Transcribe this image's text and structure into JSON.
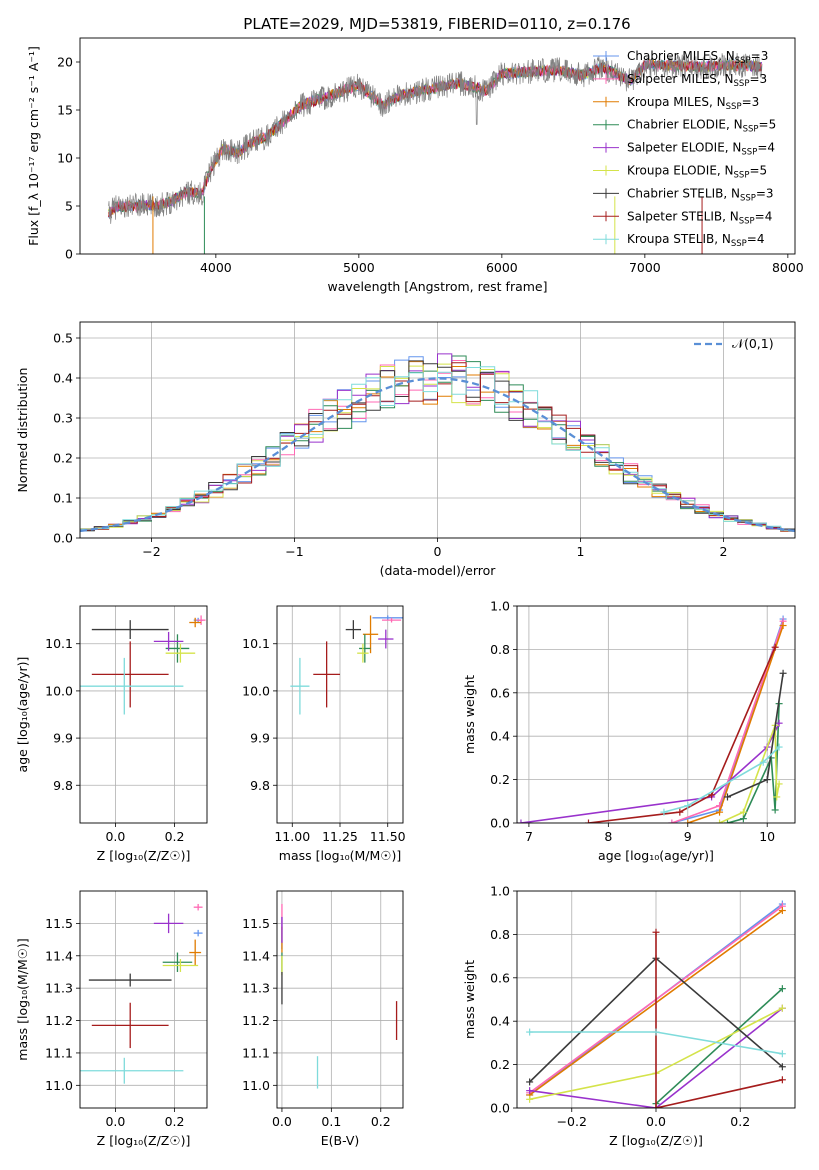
{
  "figure_title": "PLATE=2029, MJD=53819, FIBERID=0110, z=0.176",
  "colors": {
    "Chabrier MILES": "#6495ed",
    "Salpeter MILES": "#ff69b4",
    "Kroupa MILES": "#e07b00",
    "Chabrier ELODIE": "#2e8b57",
    "Salpeter ELODIE": "#9932cc",
    "Kroupa ELODIE": "#d4e34a",
    "Chabrier STELIB": "#3a3a3a",
    "Salpeter STELIB": "#a51c1c",
    "Kroupa STELIB": "#7fdbdb",
    "data": "#808080",
    "normal_curve": "#5a8fd6"
  },
  "chart_data": [
    {
      "id": "spectrum",
      "type": "line",
      "title": "PLATE=2029, MJD=53819, FIBERID=0110, z=0.176",
      "xlabel": "wavelength [Angstrom, rest frame]",
      "ylabel": "Flux [f_λ 10⁻¹⁷ erg cm⁻² s⁻¹ A⁻¹]",
      "xlim": [
        3050,
        8050
      ],
      "ylim": [
        0,
        22.5
      ],
      "xticks": [
        "4000",
        "5000",
        "6000",
        "7000",
        "8000"
      ],
      "yticks": [
        "0",
        "5",
        "10",
        "15",
        "20"
      ],
      "legend": [
        "Chabrier MILES, N_SSP=3",
        "Salpeter MILES, N_SSP=3",
        "Kroupa MILES, N_SSP=3",
        "Chabrier ELODIE, N_SSP=5",
        "Salpeter ELODIE, N_SSP=4",
        "Kroupa ELODIE, N_SSP=5",
        "Chabrier STELIB, N_SSP=3",
        "Salpeter STELIB, N_SSP=4",
        "Kroupa STELIB, N_SSP=4"
      ],
      "legend_position": "right",
      "continuum": [
        [
          3250,
          4.2
        ],
        [
          3300,
          4.9
        ],
        [
          3400,
          5.0
        ],
        [
          3500,
          5.1
        ],
        [
          3600,
          5.0
        ],
        [
          3700,
          5.6
        ],
        [
          3800,
          6.5
        ],
        [
          3900,
          6.2
        ],
        [
          3970,
          9.0
        ],
        [
          4050,
          11.0
        ],
        [
          4150,
          10.5
        ],
        [
          4250,
          11.6
        ],
        [
          4350,
          12.2
        ],
        [
          4450,
          13.5
        ],
        [
          4600,
          15.5
        ],
        [
          4800,
          16.5
        ],
        [
          5000,
          17.6
        ],
        [
          5170,
          15.5
        ],
        [
          5300,
          16.6
        ],
        [
          5500,
          17.2
        ],
        [
          5700,
          17.8
        ],
        [
          5890,
          17.0
        ],
        [
          6000,
          18.8
        ],
        [
          6200,
          19.0
        ],
        [
          6400,
          19.2
        ],
        [
          6563,
          18.6
        ],
        [
          6700,
          19.5
        ],
        [
          6900,
          18.0
        ],
        [
          7000,
          19.7
        ],
        [
          7200,
          19.6
        ],
        [
          7400,
          19.5
        ],
        [
          7600,
          19.7
        ],
        [
          7820,
          19.5
        ]
      ]
    },
    {
      "id": "residuals",
      "type": "step",
      "xlabel": "(data-model)/error",
      "ylabel": "Normed distribution",
      "xlim": [
        -2.5,
        2.5
      ],
      "ylim": [
        0,
        0.54
      ],
      "xticks": [
        "−2",
        "−1",
        "0",
        "1",
        "2"
      ],
      "yticks": [
        "0.0",
        "0.1",
        "0.2",
        "0.3",
        "0.4",
        "0.5"
      ],
      "grid": true,
      "legend": [
        "𝒩(0,1)"
      ],
      "legend_position": "top-right",
      "normal_curve": {
        "mean": 0,
        "sigma": 1
      },
      "bin_width": 0.1
    },
    {
      "id": "age_vs_Z",
      "type": "scatter",
      "xlabel": "Z [log₁₀(Z/Z☉)]",
      "ylabel": "age  [log₁₀(age/yr)]",
      "xlim": [
        -0.12,
        0.31
      ],
      "ylim": [
        9.72,
        10.18
      ],
      "xticks": [
        "0.0",
        "0.2"
      ],
      "yticks": [
        "9.8",
        "9.9",
        "10.0",
        "10.1"
      ],
      "points": [
        {
          "model": "Chabrier MILES",
          "x": 0.28,
          "xerr": 0.015,
          "y": 10.15,
          "yerr": 0.005
        },
        {
          "model": "Salpeter MILES",
          "x": 0.29,
          "xerr": 0.015,
          "y": 10.15,
          "yerr": 0.01
        },
        {
          "model": "Kroupa MILES",
          "x": 0.27,
          "xerr": 0.02,
          "y": 10.145,
          "yerr": 0.01
        },
        {
          "model": "Chabrier ELODIE",
          "x": 0.21,
          "xerr": 0.04,
          "y": 10.09,
          "yerr": 0.03
        },
        {
          "model": "Salpeter ELODIE",
          "x": 0.18,
          "xerr": 0.05,
          "y": 10.105,
          "yerr": 0.02
        },
        {
          "model": "Kroupa ELODIE",
          "x": 0.22,
          "xerr": 0.05,
          "y": 10.08,
          "yerr": 0.02
        },
        {
          "model": "Chabrier STELIB",
          "x": 0.05,
          "xerr": 0.13,
          "y": 10.13,
          "yerr": 0.02
        },
        {
          "model": "Salpeter STELIB",
          "x": 0.05,
          "xerr": 0.13,
          "y": 10.035,
          "yerr": 0.07
        },
        {
          "model": "Kroupa STELIB",
          "x": 0.03,
          "xerr": 0.2,
          "y": 10.01,
          "yerr": 0.06
        }
      ]
    },
    {
      "id": "age_vs_mass",
      "type": "scatter",
      "xlabel": "mass [log₁₀(M/M☉)]",
      "ylabel": "",
      "xlim": [
        10.92,
        11.58
      ],
      "ylim": [
        9.72,
        10.18
      ],
      "xticks": [
        "11.00",
        "11.25",
        "11.50"
      ],
      "yticks": [
        "9.8",
        "9.9",
        "10.0",
        "10.1"
      ],
      "points": [
        {
          "model": "Chabrier MILES",
          "x": 11.5,
          "xerr": 0.08,
          "y": 10.155,
          "yerr": 0.005
        },
        {
          "model": "Salpeter MILES",
          "x": 11.52,
          "xerr": 0.05,
          "y": 10.15,
          "yerr": 0.005
        },
        {
          "model": "Kroupa MILES",
          "x": 11.41,
          "xerr": 0.04,
          "y": 10.12,
          "yerr": 0.04
        },
        {
          "model": "Chabrier ELODIE",
          "x": 11.38,
          "xerr": 0.03,
          "y": 10.09,
          "yerr": 0.03
        },
        {
          "model": "Salpeter ELODIE",
          "x": 11.49,
          "xerr": 0.04,
          "y": 10.11,
          "yerr": 0.02
        },
        {
          "model": "Kroupa ELODIE",
          "x": 11.37,
          "xerr": 0.03,
          "y": 10.08,
          "yerr": 0.02
        },
        {
          "model": "Chabrier STELIB",
          "x": 11.32,
          "xerr": 0.04,
          "y": 10.13,
          "yerr": 0.02
        },
        {
          "model": "Salpeter STELIB",
          "x": 11.18,
          "xerr": 0.07,
          "y": 10.035,
          "yerr": 0.07
        },
        {
          "model": "Kroupa STELIB",
          "x": 11.04,
          "xerr": 0.05,
          "y": 10.01,
          "yerr": 0.06
        }
      ]
    },
    {
      "id": "mass_weight_vs_age",
      "type": "line",
      "xlabel": "age  [log₁₀(age/yr)]",
      "ylabel": "mass weight",
      "xlim": [
        6.85,
        10.35
      ],
      "ylim": [
        0,
        1.0
      ],
      "xticks": [
        "7",
        "8",
        "9",
        "10"
      ],
      "yticks": [
        "0.0",
        "0.2",
        "0.4",
        "0.6",
        "0.8",
        "1.0"
      ],
      "grid": true,
      "series": [
        {
          "name": "Chabrier MILES",
          "x": [
            8.8,
            9.4,
            10.2
          ],
          "y": [
            0.0,
            0.06,
            0.94
          ]
        },
        {
          "name": "Salpeter MILES",
          "x": [
            8.8,
            9.4,
            10.2
          ],
          "y": [
            0.0,
            0.08,
            0.93
          ]
        },
        {
          "name": "Kroupa MILES",
          "x": [
            9.0,
            9.4,
            10.2
          ],
          "y": [
            0.0,
            0.05,
            0.91
          ]
        },
        {
          "name": "Chabrier ELODIE",
          "x": [
            9.5,
            9.7,
            10.05,
            10.1,
            10.15
          ],
          "y": [
            0.0,
            0.02,
            0.3,
            0.06,
            0.55
          ]
        },
        {
          "name": "Salpeter ELODIE",
          "x": [
            6.9,
            9.3,
            10.0,
            10.15
          ],
          "y": [
            0.0,
            0.12,
            0.35,
            0.46
          ]
        },
        {
          "name": "Kroupa ELODIE",
          "x": [
            9.4,
            9.7,
            10.1,
            10.12,
            10.15
          ],
          "y": [
            0.0,
            0.05,
            0.45,
            0.12,
            0.18
          ]
        },
        {
          "name": "Chabrier STELIB",
          "x": [
            9.5,
            10.0,
            10.2
          ],
          "y": [
            0.12,
            0.2,
            0.69
          ]
        },
        {
          "name": "Salpeter STELIB",
          "x": [
            7.75,
            8.9,
            9.3,
            10.1
          ],
          "y": [
            0.0,
            0.05,
            0.13,
            0.81
          ]
        },
        {
          "name": "Kroupa STELIB",
          "x": [
            8.7,
            9.0,
            9.95,
            10.15
          ],
          "y": [
            0.05,
            0.08,
            0.28,
            0.35
          ]
        }
      ]
    },
    {
      "id": "mass_vs_Z",
      "type": "scatter",
      "xlabel": "Z [log₁₀(Z/Z☉)]",
      "ylabel": "mass [log₁₀(M/M☉)]",
      "xlim": [
        -0.12,
        0.31
      ],
      "ylim": [
        10.93,
        11.6
      ],
      "xticks": [
        "0.0",
        "0.2"
      ],
      "yticks": [
        "11.0",
        "11.1",
        "11.2",
        "11.3",
        "11.4",
        "11.5"
      ],
      "points": [
        {
          "model": "Chabrier MILES",
          "x": 0.28,
          "xerr": 0.015,
          "y": 11.47,
          "yerr": 0.01
        },
        {
          "model": "Salpeter MILES",
          "x": 0.28,
          "xerr": 0.015,
          "y": 11.55,
          "yerr": 0.01
        },
        {
          "model": "Kroupa MILES",
          "x": 0.27,
          "xerr": 0.02,
          "y": 11.41,
          "yerr": 0.04
        },
        {
          "model": "Chabrier ELODIE",
          "x": 0.21,
          "xerr": 0.05,
          "y": 11.38,
          "yerr": 0.03
        },
        {
          "model": "Salpeter ELODIE",
          "x": 0.18,
          "xerr": 0.05,
          "y": 11.5,
          "yerr": 0.03
        },
        {
          "model": "Kroupa ELODIE",
          "x": 0.22,
          "xerr": 0.06,
          "y": 11.37,
          "yerr": 0.02
        },
        {
          "model": "Chabrier STELIB",
          "x": 0.05,
          "xerr": 0.14,
          "y": 11.325,
          "yerr": 0.02
        },
        {
          "model": "Salpeter STELIB",
          "x": 0.05,
          "xerr": 0.13,
          "y": 11.185,
          "yerr": 0.07
        },
        {
          "model": "Kroupa STELIB",
          "x": 0.03,
          "xerr": 0.2,
          "y": 11.045,
          "yerr": 0.04
        }
      ]
    },
    {
      "id": "mass_vs_ebv",
      "type": "scatter",
      "xlabel": "E(B-V)",
      "ylabel": "",
      "xlim": [
        -0.01,
        0.245
      ],
      "ylim": [
        10.93,
        11.6
      ],
      "xticks": [
        "0.0",
        "0.1",
        "0.2"
      ],
      "yticks": [
        "11.0",
        "11.1",
        "11.2",
        "11.3",
        "11.4",
        "11.5"
      ],
      "points": [
        {
          "model": "Chabrier MILES",
          "x": 0.0,
          "xerr": 0.0,
          "y": 11.47,
          "yerr": 0.05
        },
        {
          "model": "Salpeter MILES",
          "x": 0.0,
          "xerr": 0.0,
          "y": 11.52,
          "yerr": 0.04
        },
        {
          "model": "Kroupa MILES",
          "x": 0.0,
          "xerr": 0.0,
          "y": 11.45,
          "yerr": 0.04
        },
        {
          "model": "Chabrier ELODIE",
          "x": 0.0,
          "xerr": 0.0,
          "y": 11.38,
          "yerr": 0.03
        },
        {
          "model": "Salpeter ELODIE",
          "x": 0.0,
          "xerr": 0.0,
          "y": 11.48,
          "yerr": 0.04
        },
        {
          "model": "Kroupa ELODIE",
          "x": 0.0,
          "xerr": 0.0,
          "y": 11.37,
          "yerr": 0.03
        },
        {
          "model": "Chabrier STELIB",
          "x": 0.0,
          "xerr": 0.0,
          "y": 11.3,
          "yerr": 0.05
        },
        {
          "model": "Salpeter STELIB",
          "x": 0.232,
          "xerr": 0.0,
          "y": 11.2,
          "yerr": 0.06
        },
        {
          "model": "Kroupa STELIB",
          "x": 0.072,
          "xerr": 0.0,
          "y": 11.04,
          "yerr": 0.05
        }
      ]
    },
    {
      "id": "mass_weight_vs_Z",
      "type": "line",
      "xlabel": "Z [log₁₀(Z/Z☉)]",
      "ylabel": "mass weight",
      "xlim": [
        -0.33,
        0.33
      ],
      "ylim": [
        0,
        1.0
      ],
      "xticks": [
        "−0.2",
        "0.0",
        "0.2"
      ],
      "yticks": [
        "0.0",
        "0.2",
        "0.4",
        "0.6",
        "0.8",
        "1.0"
      ],
      "grid": true,
      "series": [
        {
          "name": "Chabrier MILES",
          "x": [
            -0.3,
            0.3
          ],
          "y": [
            0.06,
            0.94
          ]
        },
        {
          "name": "Salpeter MILES",
          "x": [
            -0.3,
            0.3
          ],
          "y": [
            0.07,
            0.93
          ]
        },
        {
          "name": "Kroupa MILES",
          "x": [
            -0.3,
            0.3
          ],
          "y": [
            0.06,
            0.91
          ]
        },
        {
          "name": "Chabrier ELODIE",
          "x": [
            0.0,
            0.3
          ],
          "y": [
            0.02,
            0.55
          ]
        },
        {
          "name": "Salpeter ELODIE",
          "x": [
            -0.3,
            0.0,
            0.3
          ],
          "y": [
            0.08,
            0.0,
            0.46
          ]
        },
        {
          "name": "Kroupa ELODIE",
          "x": [
            -0.3,
            0.0,
            0.3
          ],
          "y": [
            0.04,
            0.16,
            0.46
          ]
        },
        {
          "name": "Chabrier STELIB",
          "x": [
            -0.3,
            0.0,
            0.3
          ],
          "y": [
            0.12,
            0.69,
            0.19
          ]
        },
        {
          "name": "Salpeter STELIB",
          "x": [
            0.0,
            0.0,
            0.3
          ],
          "y": [
            0.81,
            0.0,
            0.13
          ]
        },
        {
          "name": "Kroupa STELIB",
          "x": [
            -0.3,
            0.0,
            0.3
          ],
          "y": [
            0.35,
            0.35,
            0.25
          ]
        }
      ]
    }
  ]
}
